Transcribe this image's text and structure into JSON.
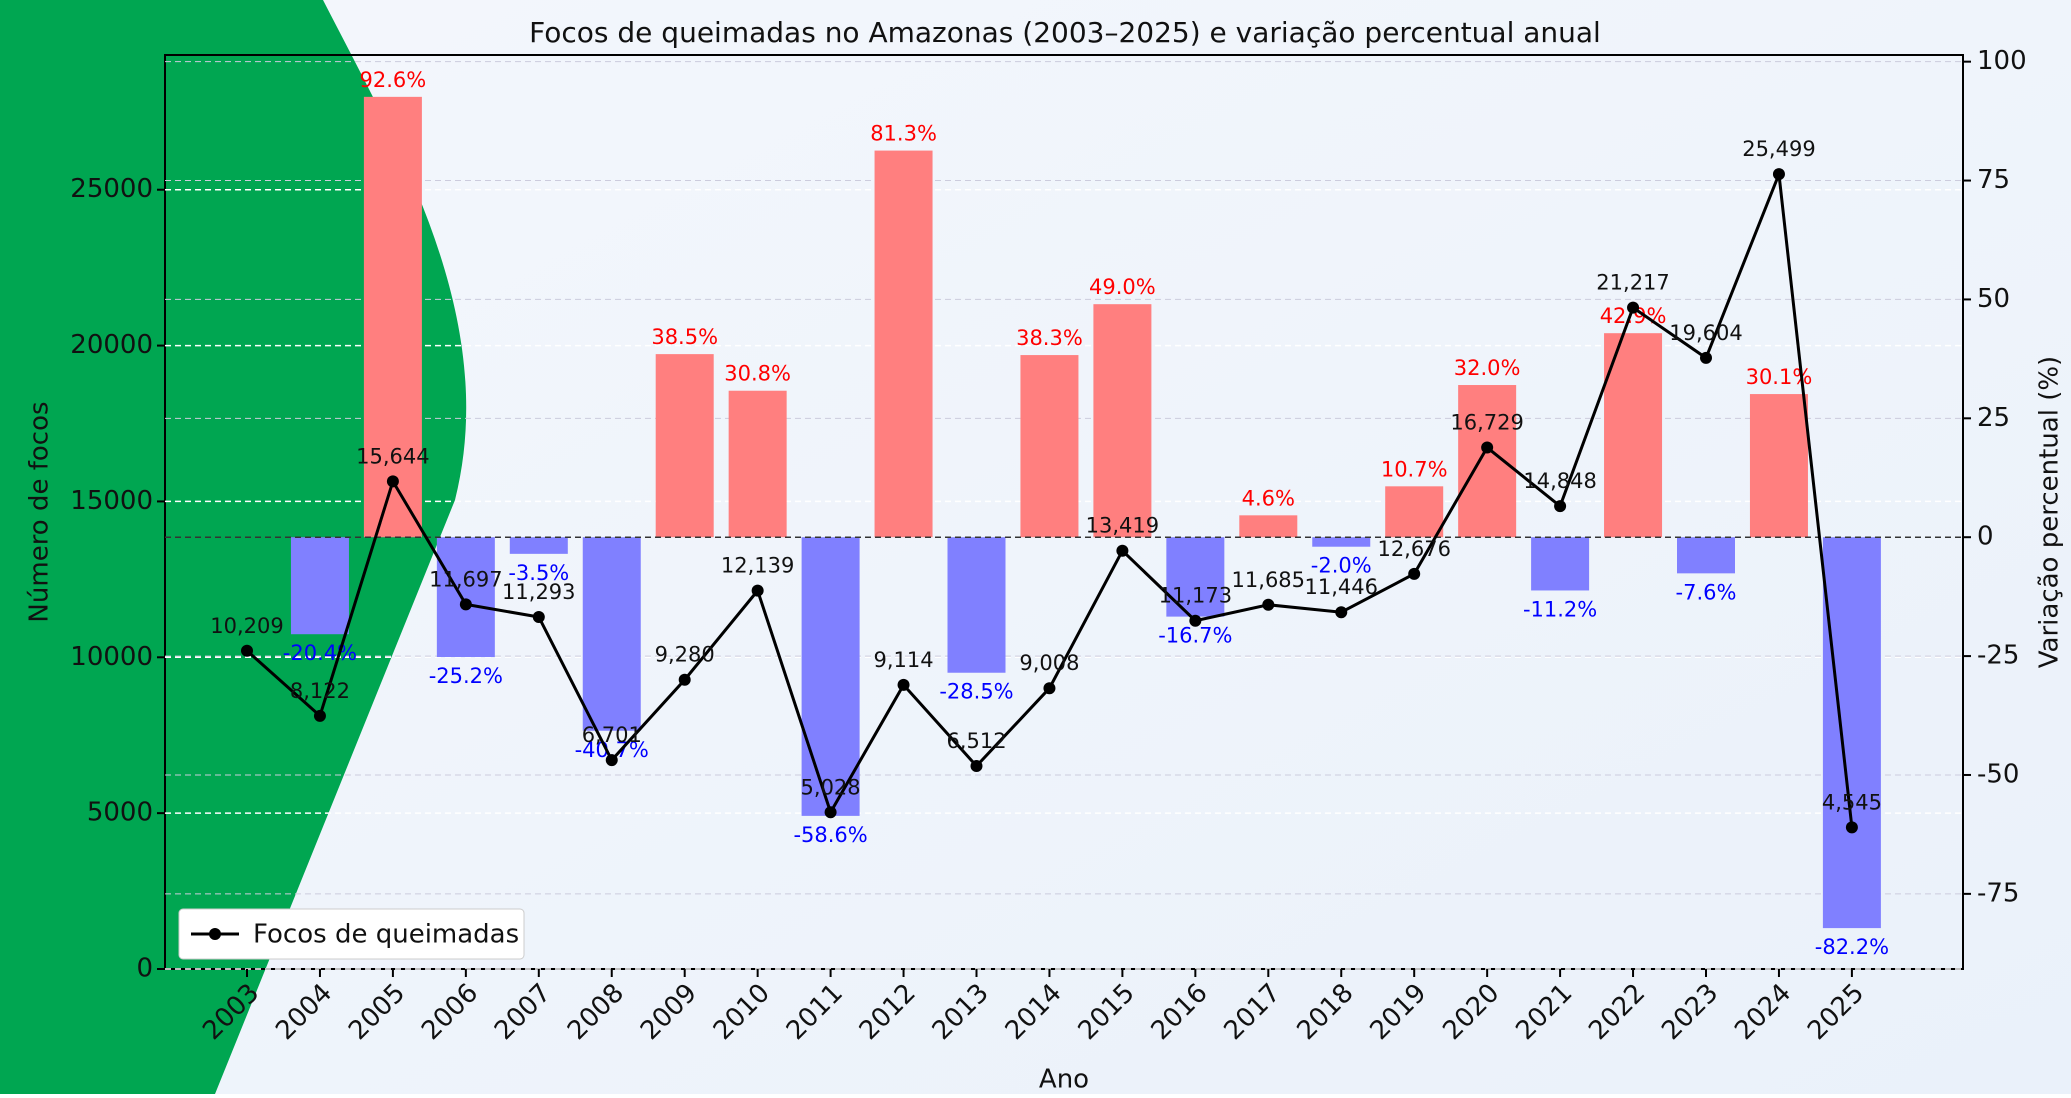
{
  "chart_data": {
    "type": "bar_line",
    "title": "Focos de queimadas no Amazonas (2003–2025) e variação percentual anual",
    "xlabel": "Ano",
    "ylabel": "Número de focos",
    "y2label": "Variação percentual (%)",
    "categories": [
      "2003",
      "2004",
      "2005",
      "2006",
      "2007",
      "2008",
      "2009",
      "2010",
      "2011",
      "2012",
      "2013",
      "2014",
      "2015",
      "2016",
      "2017",
      "2018",
      "2019",
      "2020",
      "2021",
      "2022",
      "2023",
      "2024",
      "2025"
    ],
    "series": [
      {
        "name": "Focos de queimadas",
        "color": "#000000",
        "values": [
          10209,
          8122,
          15644,
          11697,
          11293,
          6701,
          9280,
          12139,
          5028,
          9114,
          6512,
          9008,
          13419,
          11173,
          11685,
          11446,
          12676,
          16729,
          14848,
          21217,
          19604,
          25499,
          4545
        ],
        "value_labels": [
          "10,209",
          "8,122",
          "15,644",
          "11,697",
          "11,293",
          "6,701",
          "9,280",
          "12,139",
          "5,028",
          "9,114",
          "6,512",
          "9,008",
          "13,419",
          "11,173",
          "11,685",
          "11,446",
          "12,676",
          "16,729",
          "14,848",
          "21,217",
          "19,604",
          "25,499",
          "4,545"
        ]
      }
    ],
    "bars": {
      "axis": "y2",
      "positive_color": "#ff7f7f",
      "negative_color": "#8080ff",
      "positive_label_color": "#ff0000",
      "negative_label_color": "#0000ff",
      "values": [
        null,
        -20.4,
        92.6,
        -25.2,
        -3.5,
        -40.7,
        38.5,
        30.8,
        -58.6,
        81.3,
        -28.5,
        38.3,
        49.0,
        -16.7,
        4.6,
        -2.0,
        10.7,
        32.0,
        -11.2,
        42.9,
        -7.6,
        30.1,
        -82.2
      ],
      "value_labels": [
        null,
        "-20.4%",
        "92.6%",
        "-25.2%",
        "-3.5%",
        "-40.7%",
        "38.5%",
        "30.8%",
        "-58.6%",
        "81.3%",
        "-28.5%",
        "38.3%",
        "49.0%",
        "-16.7%",
        "4.6%",
        "-2.0%",
        "10.7%",
        "32.0%",
        "-11.2%",
        "42.9%",
        "-7.6%",
        "30.1%",
        "-82.2%"
      ]
    },
    "ylim": [
      0,
      29322
    ],
    "yticks": [
      0,
      5000,
      10000,
      15000,
      20000,
      25000
    ],
    "y2lim": [
      -90.8,
      101.4
    ],
    "y2ticks": [
      -75,
      -50,
      -25,
      0,
      25,
      50,
      75,
      100
    ],
    "grid": true,
    "legend": "lower left"
  }
}
